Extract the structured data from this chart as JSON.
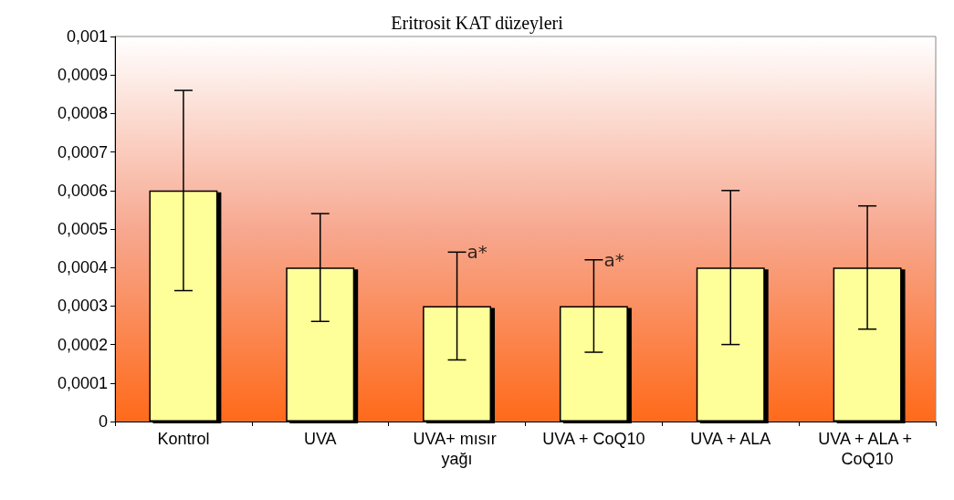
{
  "chart_data": {
    "type": "bar",
    "title": "Eritrosit KAT düzeyleri",
    "categories": [
      "Kontrol",
      "UVA",
      "UVA+ mısır yağı",
      "UVA + CoQ10",
      "UVA + ALA",
      "UVA + ALA + CoQ10"
    ],
    "values": [
      0.0006,
      0.0004,
      0.0003,
      0.0003,
      0.0004,
      0.0004
    ],
    "errors": [
      0.00026,
      0.00014,
      0.00014,
      0.00012,
      0.0002,
      0.00016
    ],
    "color": "#ffff99",
    "ylim": [
      0,
      0.001
    ],
    "yticks": [
      {
        "value": 0,
        "label": "0"
      },
      {
        "value": 0.0001,
        "label": "0,0001"
      },
      {
        "value": 0.0002,
        "label": "0,0002"
      },
      {
        "value": 0.0003,
        "label": "0,0003"
      },
      {
        "value": 0.0004,
        "label": "0,0004"
      },
      {
        "value": 0.0005,
        "label": "0,0005"
      },
      {
        "value": 0.0006,
        "label": "0,0006"
      },
      {
        "value": 0.0007,
        "label": "0,0007"
      },
      {
        "value": 0.0008,
        "label": "0,0008"
      },
      {
        "value": 0.0009,
        "label": "0,0009"
      },
      {
        "value": 0.001,
        "label": "0,001"
      }
    ],
    "annotations": [
      {
        "text": "a*",
        "x": "UVA+ mısır yağı",
        "y": 0.00044
      },
      {
        "text": "a*",
        "x": "UVA + CoQ10",
        "y": 0.00042
      }
    ],
    "grid": false
  }
}
